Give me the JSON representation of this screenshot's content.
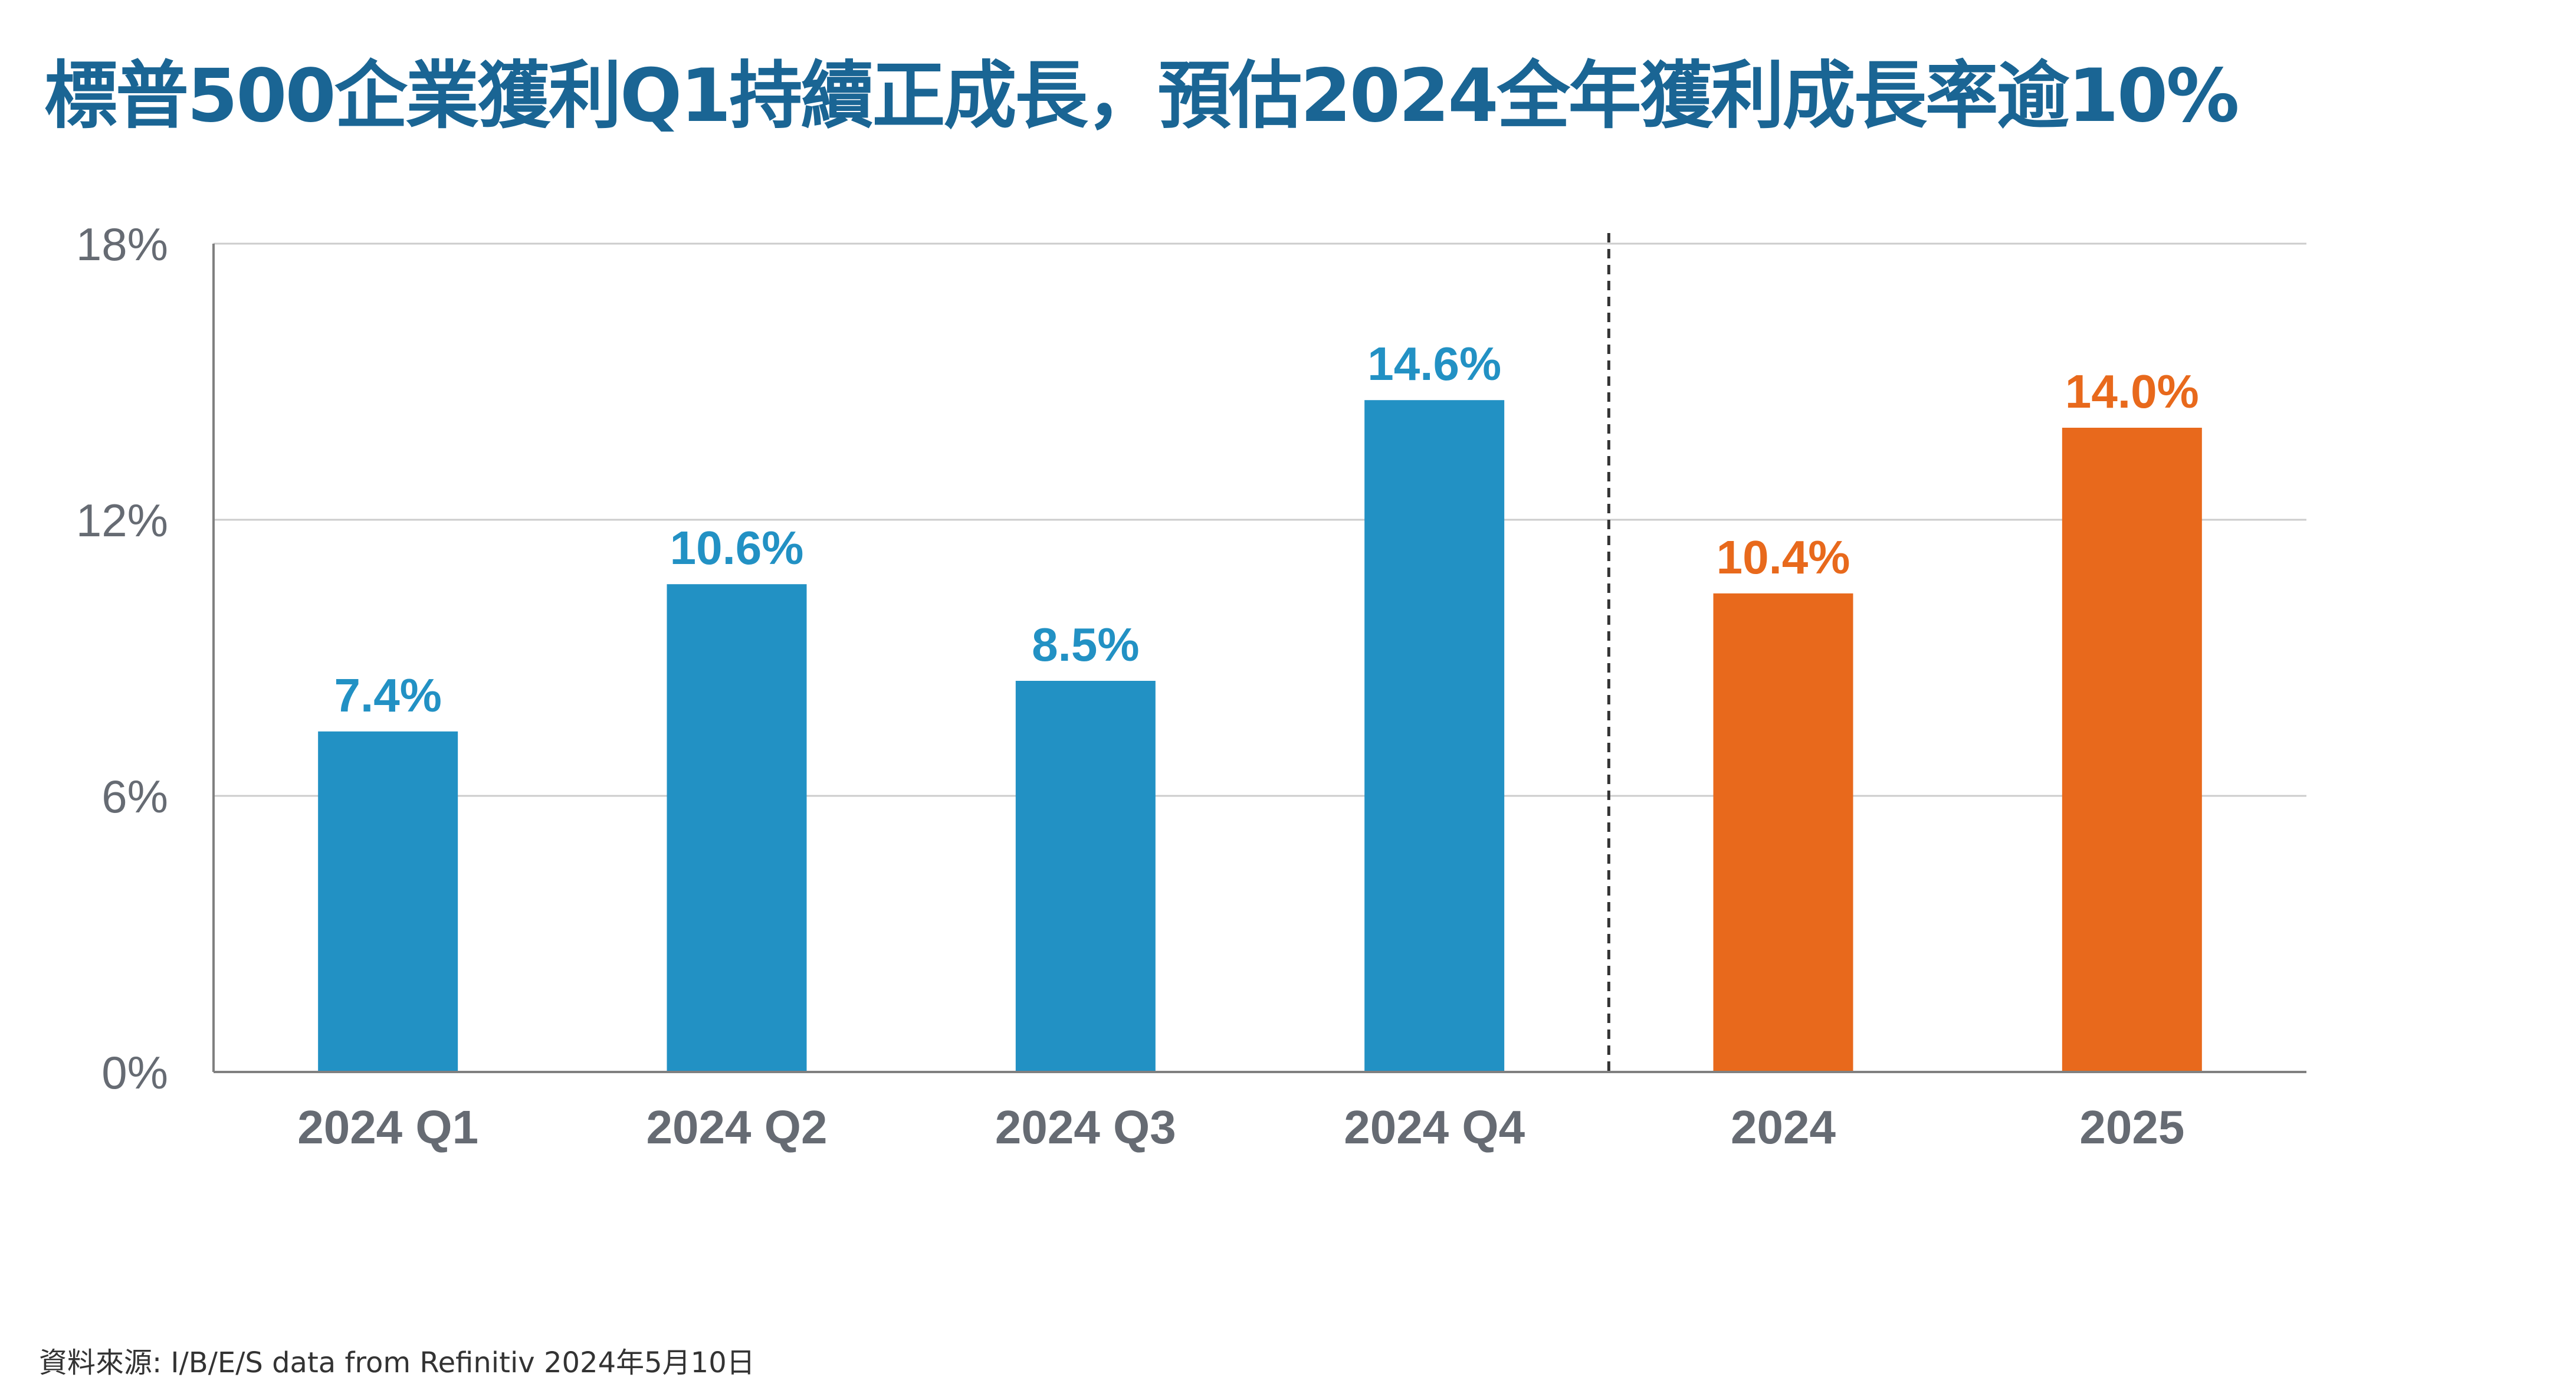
{
  "title": "標普500企業獲利Q1持續正成長，預估2024全年獲利成長率逾10%",
  "source": "資料來源: I/B/E/S data from Refinitiv  2024年5月10日",
  "colors": {
    "title": "#1a6594",
    "quarterly": "#2291c4",
    "annual": "#e8691c",
    "axis_text": "#666b73",
    "gridline": "#cccccc",
    "axis_line": "#808080",
    "divider": "#333333"
  },
  "chart_data": {
    "type": "bar",
    "categories": [
      "2024 Q1",
      "2024 Q2",
      "2024 Q3",
      "2024 Q4",
      "2024",
      "2025"
    ],
    "values": [
      7.4,
      10.6,
      8.5,
      14.6,
      10.4,
      14.0
    ],
    "value_labels": [
      "7.4%",
      "10.6%",
      "8.5%",
      "14.6%",
      "10.4%",
      "14.0%"
    ],
    "bar_groups": [
      "quarterly",
      "quarterly",
      "quarterly",
      "quarterly",
      "annual",
      "annual"
    ],
    "ylim": [
      0,
      18
    ],
    "yticks": [
      0,
      6,
      12,
      18
    ],
    "ytick_labels": [
      "0%",
      "6%",
      "12%",
      "18%"
    ],
    "grid": true,
    "divider_after_category": "2024 Q4",
    "xlabel": "",
    "ylabel": ""
  }
}
